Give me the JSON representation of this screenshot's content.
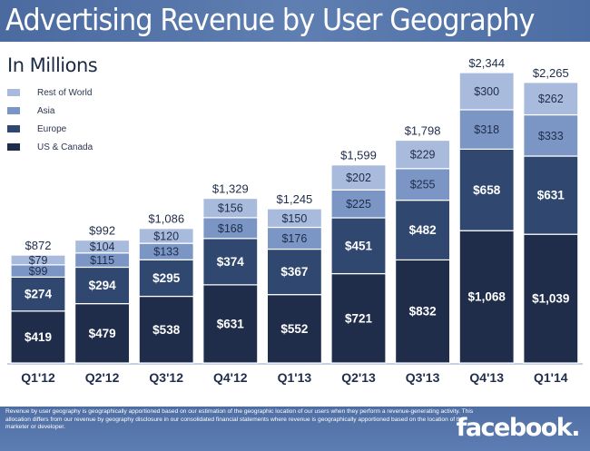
{
  "header": {
    "title": "Advertising Revenue by User Geography"
  },
  "footer": {
    "note": "Revenue by user geography is geographically apportioned based on our estimation of the geographic location of our users when they perform a revenue-generating activity. This allocation differs from our revenue by geography disclosure in our consolidated financial statements where revenue is geographically apportioned based on the location of the marketer or developer.",
    "brand": "facebook."
  },
  "chart_data": {
    "type": "bar",
    "stacked": true,
    "title": "Advertising Revenue by User Geography",
    "subtitle": "In Millions",
    "xlabel": "",
    "ylabel": "",
    "ylim": [
      0,
      2344
    ],
    "grid": false,
    "legend_position": "top-left",
    "categories": [
      "Q1'12",
      "Q2'12",
      "Q3'12",
      "Q4'12",
      "Q1'13",
      "Q2'13",
      "Q3'13",
      "Q4'13",
      "Q1'14"
    ],
    "series": [
      {
        "name": "US & Canada",
        "color": "#1f2d4b",
        "values": [
          419,
          479,
          538,
          631,
          552,
          721,
          832,
          1068,
          1039
        ],
        "labels": [
          "$419",
          "$479",
          "$538",
          "$631",
          "$552",
          "$721",
          "$832",
          "$1,068",
          "$1,039"
        ]
      },
      {
        "name": "Europe",
        "color": "#30476f",
        "values": [
          274,
          294,
          295,
          374,
          367,
          451,
          482,
          658,
          631
        ],
        "labels": [
          "$274",
          "$294",
          "$295",
          "$374",
          "$367",
          "$451",
          "$482",
          "$658",
          "$631"
        ]
      },
      {
        "name": "Asia",
        "color": "#7b96c4",
        "values": [
          99,
          115,
          133,
          168,
          176,
          225,
          255,
          318,
          333
        ],
        "labels": [
          "$99",
          "$115",
          "$133",
          "$168",
          "$176",
          "$225",
          "$255",
          "$318",
          "$333"
        ]
      },
      {
        "name": "Rest of World",
        "color": "#a9bbdc",
        "values": [
          79,
          104,
          120,
          156,
          150,
          202,
          229,
          300,
          262
        ],
        "labels": [
          "$79",
          "$104",
          "$120",
          "$156",
          "$150",
          "$202",
          "$229",
          "$300",
          "$262"
        ]
      }
    ],
    "totals": [
      872,
      992,
      1086,
      1329,
      1245,
      1599,
      1798,
      2344,
      2265
    ],
    "total_labels": [
      "$872",
      "$992",
      "$1,086",
      "$1,329",
      "$1,245",
      "$1,599",
      "$1,798",
      "$2,344",
      "$2,265"
    ],
    "legend": [
      {
        "name": "Rest of World",
        "color": "#a9bbdc"
      },
      {
        "name": "Asia",
        "color": "#7b96c4"
      },
      {
        "name": "Europe",
        "color": "#30476f"
      },
      {
        "name": "US & Canada",
        "color": "#1f2d4b"
      }
    ]
  }
}
